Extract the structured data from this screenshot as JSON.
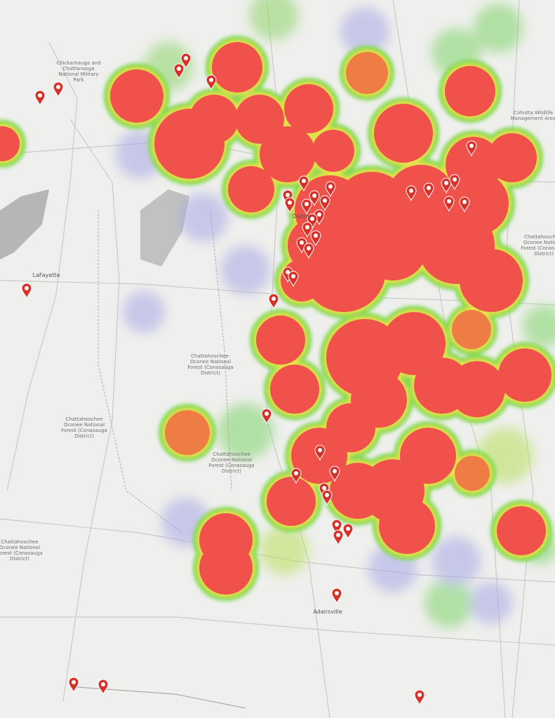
{
  "map": {
    "labels": [
      "Cohutta Wildlife Management Area",
      "Chickamauga and Chattanooga National Military Park",
      "Chattahoochee-Oconee National Forest (Conasauga District)",
      "Chattahoochee Oconee National Forest (Conasauga District)",
      "Chattahoochee Oconee National Forest (Conasauga District)",
      "Chattahoochee Oconee National Forest (Conasauga District)",
      "Chattahoochee-Oconee National Forest (Conasauga District)",
      "LaFayette",
      "Dalton",
      "Adairsville"
    ]
  }
}
